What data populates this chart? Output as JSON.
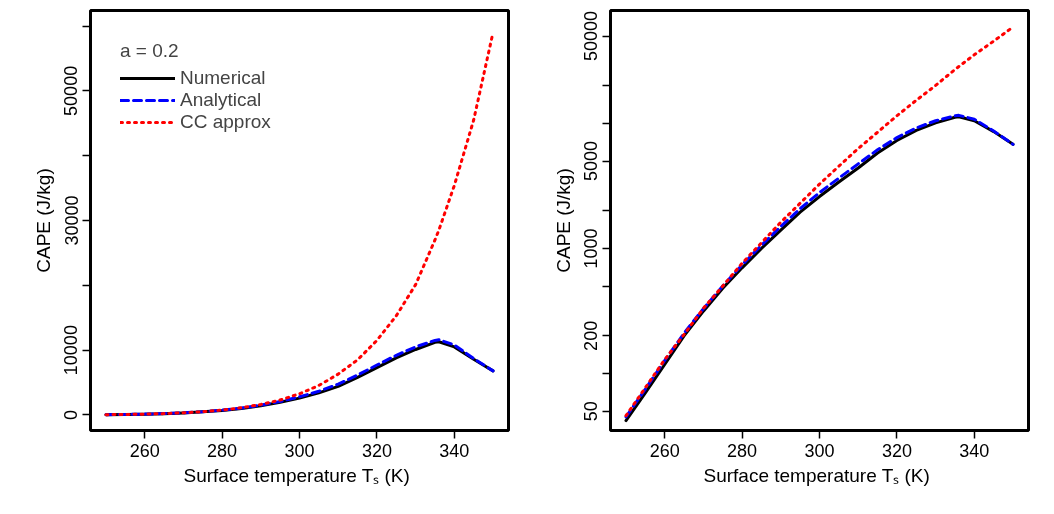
{
  "chart_data": [
    {
      "type": "line",
      "xlabel": "Surface temperature Tₛ  (K)",
      "ylabel": "CAPE (J/kg)",
      "legend": "top left",
      "legend_title": "a = 0.2",
      "x": [
        250,
        255,
        260,
        265,
        270,
        275,
        280,
        285,
        290,
        295,
        300,
        305,
        310,
        315,
        320,
        325,
        330,
        335,
        336,
        340,
        345,
        350
      ],
      "xlim": [
        246,
        354
      ],
      "xticks": [
        260,
        280,
        300,
        320,
        340
      ],
      "ylim": [
        -2400,
        62400
      ],
      "yticks": [
        0,
        10000,
        {
          "value": 20000,
          "label": null
        },
        30000,
        {
          "value": 40000,
          "label": null
        },
        50000,
        {
          "value": 60000,
          "label": null
        }
      ],
      "series": [
        {
          "name": "Numerical",
          "color": "#000000",
          "line_style": "solid",
          "values": [
            42,
            70,
            118,
            200,
            315,
            480,
            700,
            1000,
            1400,
            1950,
            2600,
            3400,
            4400,
            5800,
            7300,
            8800,
            10100,
            11200,
            11300,
            10500,
            8600,
            6800
          ]
        },
        {
          "name": "Analytical",
          "color": "#0000ff",
          "line_style": "dashed",
          "values": [
            45,
            75,
            127,
            210,
            330,
            500,
            740,
            1060,
            1500,
            2080,
            2800,
            3650,
            4750,
            6150,
            7700,
            9200,
            10500,
            11500,
            11600,
            10800,
            8700,
            6800
          ]
        },
        {
          "name": "CC approx",
          "color": "#ff0000",
          "line_style": "dotted",
          "values": [
            46,
            77,
            129,
            205,
            332,
            500,
            762,
            1110,
            1620,
            2300,
            3270,
            4550,
            6300,
            8500,
            11500,
            15300,
            20100,
            27000,
            28500,
            35400,
            45500,
            59000
          ]
        }
      ]
    },
    {
      "type": "line",
      "xlabel": "Surface temperature Tₛ  (K)",
      "ylabel": "CAPE (J/kg)",
      "log": "y",
      "x": [
        250,
        255,
        260,
        265,
        270,
        275,
        280,
        285,
        290,
        295,
        300,
        305,
        310,
        315,
        320,
        325,
        330,
        335,
        336,
        340,
        345,
        350
      ],
      "xlim": [
        246,
        354
      ],
      "xticks": [
        260,
        280,
        300,
        320,
        340
      ],
      "ylim": [
        35,
        80000
      ],
      "yticks": [
        50,
        {
          "value": 100,
          "label": null
        },
        200,
        {
          "value": 500,
          "label": null
        },
        1000,
        {
          "value": 2000,
          "label": null
        },
        5000,
        {
          "value": 10000,
          "label": null
        },
        {
          "value": 20000,
          "label": null
        },
        50000
      ],
      "series": [
        {
          "color": "#000000",
          "line_style": "solid",
          "values": [
            42,
            70,
            118,
            200,
            315,
            480,
            700,
            1000,
            1400,
            1950,
            2600,
            3400,
            4400,
            5800,
            7300,
            8800,
            10100,
            11200,
            11300,
            10500,
            8600,
            6800
          ]
        },
        {
          "color": "#0000ff",
          "line_style": "dashed",
          "values": [
            45,
            75,
            127,
            210,
            330,
            500,
            740,
            1060,
            1500,
            2080,
            2800,
            3650,
            4750,
            6150,
            7700,
            9200,
            10500,
            11500,
            11600,
            10800,
            8700,
            6800
          ]
        },
        {
          "color": "#ff0000",
          "line_style": "dotted",
          "values": [
            46,
            77,
            129,
            205,
            332,
            500,
            762,
            1110,
            1620,
            2300,
            3270,
            4550,
            6300,
            8500,
            11500,
            15300,
            20100,
            27000,
            28500,
            35400,
            45500,
            59000
          ]
        }
      ]
    }
  ]
}
